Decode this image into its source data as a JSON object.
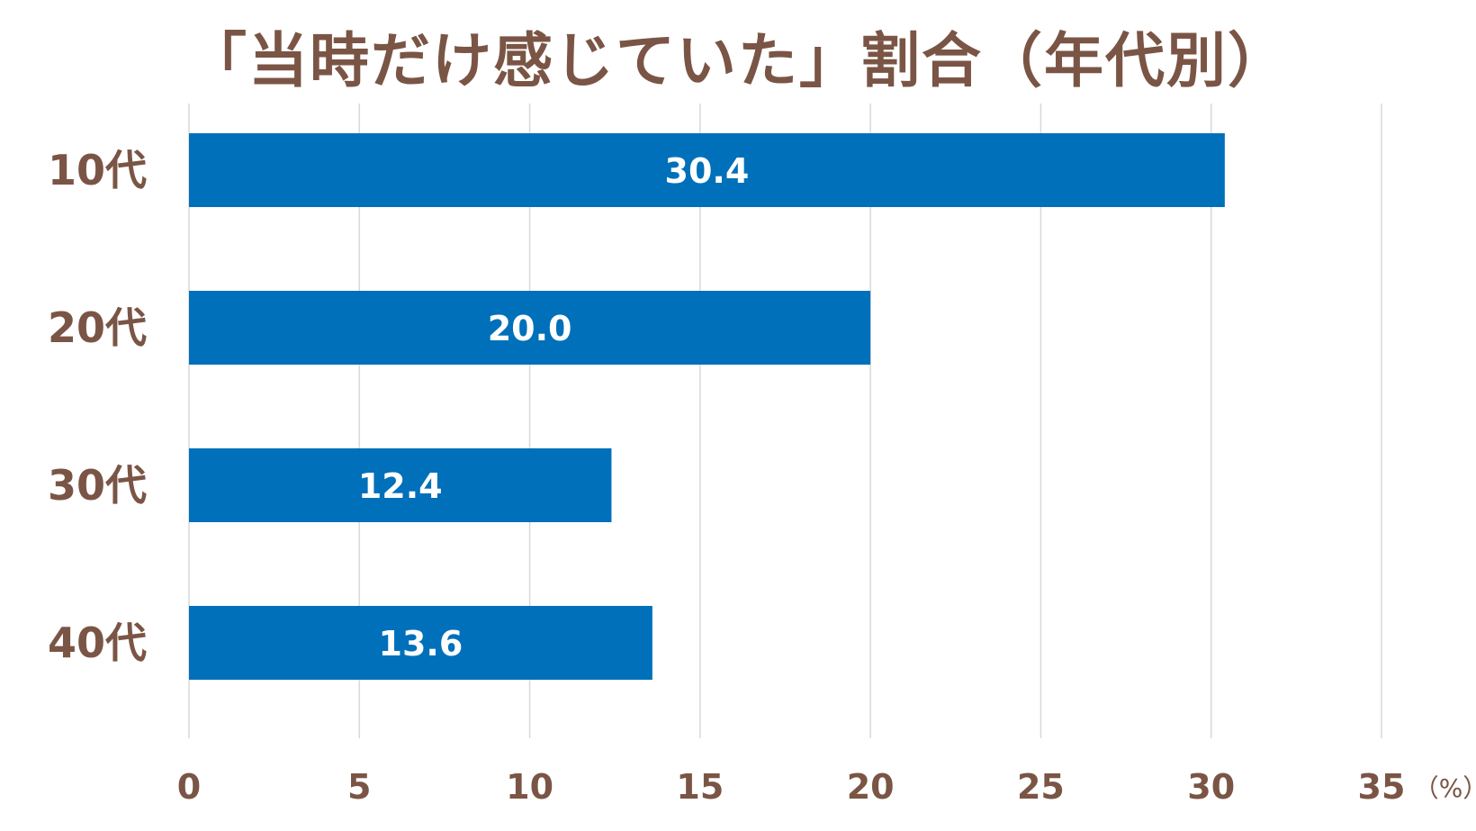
{
  "chart_data": {
    "type": "bar",
    "orientation": "horizontal",
    "title": "「当時だけ感じていた」割合（年代別）",
    "categories": [
      "10代",
      "20代",
      "30代",
      "40代"
    ],
    "values": [
      30.4,
      20.0,
      12.4,
      13.6
    ],
    "data_labels": [
      "30.4",
      "20.0",
      "12.4",
      "13.6"
    ],
    "xlim": [
      0,
      35
    ],
    "x_ticks": [
      0,
      5,
      10,
      15,
      20,
      25,
      30,
      35
    ],
    "x_tick_labels": [
      "0",
      "5",
      "10",
      "15",
      "20",
      "25",
      "30",
      "35"
    ],
    "x_unit": "（%）",
    "grid": "vertical",
    "legend": "none"
  },
  "colors": {
    "bar": "#0070BA",
    "text": "#7A5545",
    "grid": "#D9D9D9",
    "background": "#FFFFFF"
  }
}
